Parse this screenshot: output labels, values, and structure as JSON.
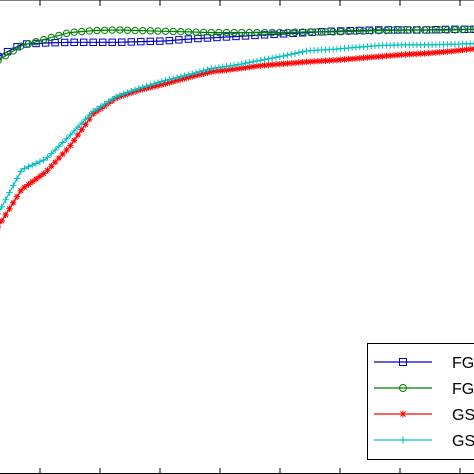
{
  "chart_data": {
    "type": "line",
    "title": "",
    "xlabel": "",
    "ylabel": "",
    "xlim": [
      0,
      100
    ],
    "ylim": [
      0,
      1
    ],
    "grid": false,
    "legend_placement": "bottom-right",
    "x": [
      0,
      5,
      10,
      15,
      20,
      25,
      30,
      35,
      40,
      45,
      50,
      55,
      60,
      65,
      70,
      75,
      80,
      85,
      90,
      95,
      100
    ],
    "series": [
      {
        "name": "FG",
        "color": "#0000cc",
        "marker": "square",
        "values": [
          0.936,
          0.955,
          0.957,
          0.958,
          0.958,
          0.958,
          0.959,
          0.96,
          0.963,
          0.965,
          0.967,
          0.969,
          0.971,
          0.973,
          0.975,
          0.976,
          0.977,
          0.977,
          0.977,
          0.978,
          0.978
        ]
      },
      {
        "name": "FG",
        "color": "#008000",
        "marker": "circle",
        "values": [
          0.93,
          0.953,
          0.963,
          0.973,
          0.976,
          0.977,
          0.976,
          0.975,
          0.974,
          0.973,
          0.973,
          0.973,
          0.973,
          0.974,
          0.974,
          0.975,
          0.976,
          0.977,
          0.977,
          0.977,
          0.978
        ]
      },
      {
        "name": "GS",
        "color": "#ff0000",
        "marker": "asterisk",
        "values": [
          0.674,
          0.732,
          0.758,
          0.797,
          0.848,
          0.873,
          0.885,
          0.894,
          0.904,
          0.913,
          0.917,
          0.922,
          0.925,
          0.928,
          0.93,
          0.933,
          0.936,
          0.939,
          0.941,
          0.944,
          0.948
        ]
      },
      {
        "name": "GS",
        "color": "#00bfbf",
        "marker": "plus",
        "values": [
          0.694,
          0.762,
          0.778,
          0.814,
          0.852,
          0.875,
          0.888,
          0.899,
          0.908,
          0.918,
          0.923,
          0.93,
          0.937,
          0.945,
          0.947,
          0.95,
          0.953,
          0.954,
          0.954,
          0.955,
          0.956
        ]
      }
    ]
  }
}
